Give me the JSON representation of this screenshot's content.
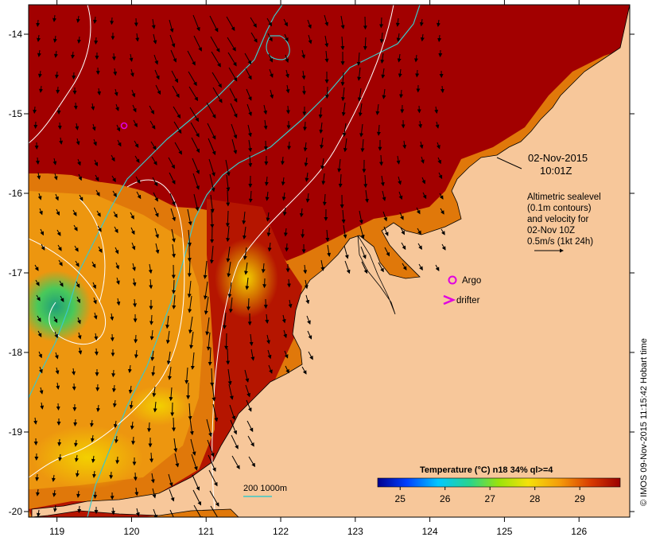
{
  "map": {
    "date": "02-Nov-2015",
    "time": "10:01Z",
    "info_lines": [
      "Altimetric sealevel",
      "(0.1m contours)",
      "and velocity for",
      "02-Nov 10Z",
      "0.5m/s (1kt 24h)"
    ],
    "legend_argo": "Argo",
    "legend_drifter": "drifter",
    "isobath_label": "200  1000m",
    "colorbar_title": "Temperature (°C) n18 34% ql>=4",
    "colorbar_ticks": [
      "25",
      "26",
      "27",
      "28",
      "29"
    ],
    "colorbar_range": [
      24.5,
      29.9
    ],
    "x_ticks": [
      "119",
      "120",
      "121",
      "122",
      "123",
      "124",
      "125",
      "126"
    ],
    "y_ticks": [
      "-14",
      "-15",
      "-16",
      "-17",
      "-18",
      "-19",
      "-20"
    ],
    "lon_range": [
      118.62,
      126.68
    ],
    "lat_range": [
      -20.07,
      -13.63
    ],
    "credit": "© IMOS 09-Nov-2015 11:15:42 Hobart time",
    "argo_float": {
      "lon": 119.9,
      "lat": -15.15
    },
    "colors": {
      "land": "#f7c79a",
      "sst_hot": "#a00000",
      "sst_warm": "#e86b00",
      "sst_mid": "#f3ce10",
      "sst_cool": "#2cc36d",
      "contour": "#ffffff",
      "isobath": "#3cc8c8",
      "argo": "#e000e0"
    }
  }
}
